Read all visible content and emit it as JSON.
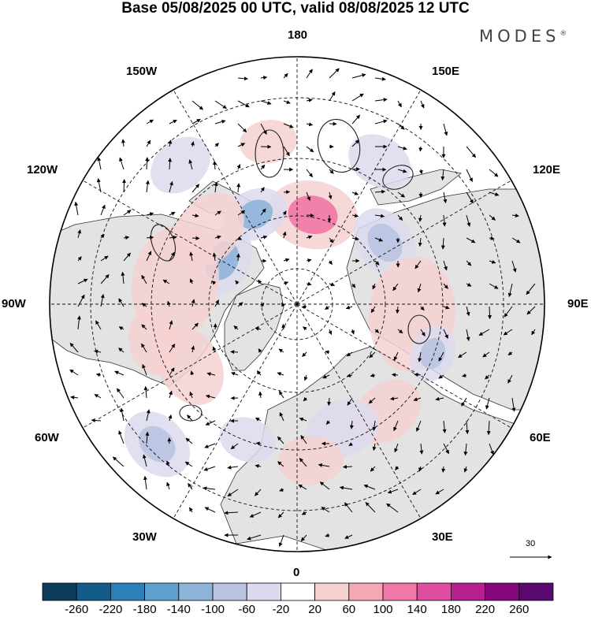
{
  "title": "Base 05/08/2025 00 UTC, valid 08/08/2025 12 UTC",
  "brand": "MODES",
  "brand_mark": "®",
  "longitude_labels": {
    "lon_180": "180",
    "lon_150E": "150E",
    "lon_120E": "120E",
    "lon_90E": "90E",
    "lon_60E": "60E",
    "lon_30E": "30E",
    "lon_0": "0",
    "lon_30W": "30W",
    "lon_60W": "60W",
    "lon_90W": "90W",
    "lon_120W": "120W",
    "lon_150W": "150W"
  },
  "reference_vector": {
    "value": "30"
  },
  "colorbar": {
    "labels": [
      "-260",
      "-220",
      "-180",
      "-140",
      "-100",
      "-60",
      "-20",
      "20",
      "60",
      "100",
      "140",
      "180",
      "220",
      "260"
    ],
    "colors": [
      "#0c3b5c",
      "#135c8a",
      "#2c7fb8",
      "#5ea3cf",
      "#8fb3d9",
      "#b9c3e0",
      "#dcdaee",
      "#ffffff",
      "#f6d1d1",
      "#f4a8b3",
      "#ef78a6",
      "#df4da1",
      "#b51f8f",
      "#86067c",
      "#5a0a6e"
    ]
  },
  "anomaly_cells": [
    {
      "lon": 170,
      "colat": 22,
      "r": 11,
      "v": 120
    },
    {
      "lon": -155,
      "colat": 24,
      "r": 8,
      "v": -120
    },
    {
      "lon": 125,
      "colat": 26,
      "r": 9,
      "v": -90
    },
    {
      "lon": -120,
      "colat": 21,
      "r": 9,
      "v": -110
    },
    {
      "lon": -130,
      "colat": 28,
      "r": 10,
      "v": 40
    },
    {
      "lon": -100,
      "colat": 30,
      "r": 14,
      "v": 40
    },
    {
      "lon": -140,
      "colat": 44,
      "r": 8,
      "v": -40
    },
    {
      "lon": 85,
      "colat": 28,
      "r": 14,
      "v": 55
    },
    {
      "lon": 70,
      "colat": 35,
      "r": 7,
      "v": -70
    },
    {
      "lon": 40,
      "colat": 34,
      "r": 9,
      "v": 40
    },
    {
      "lon": 20,
      "colat": 32,
      "r": 9,
      "v": -50
    },
    {
      "lon": -45,
      "colat": 48,
      "r": 9,
      "v": -70
    },
    {
      "lon": -60,
      "colat": 30,
      "r": 10,
      "v": 30
    },
    {
      "lon": -20,
      "colat": 35,
      "r": 7,
      "v": -30
    },
    {
      "lon": 5,
      "colat": 38,
      "r": 8,
      "v": 30
    },
    {
      "lon": -75,
      "colat": 36,
      "r": 8,
      "v": 35
    },
    {
      "lon": 150,
      "colat": 40,
      "r": 8,
      "v": -30
    },
    {
      "lon": -170,
      "colat": 40,
      "r": 7,
      "v": 30
    }
  ]
}
